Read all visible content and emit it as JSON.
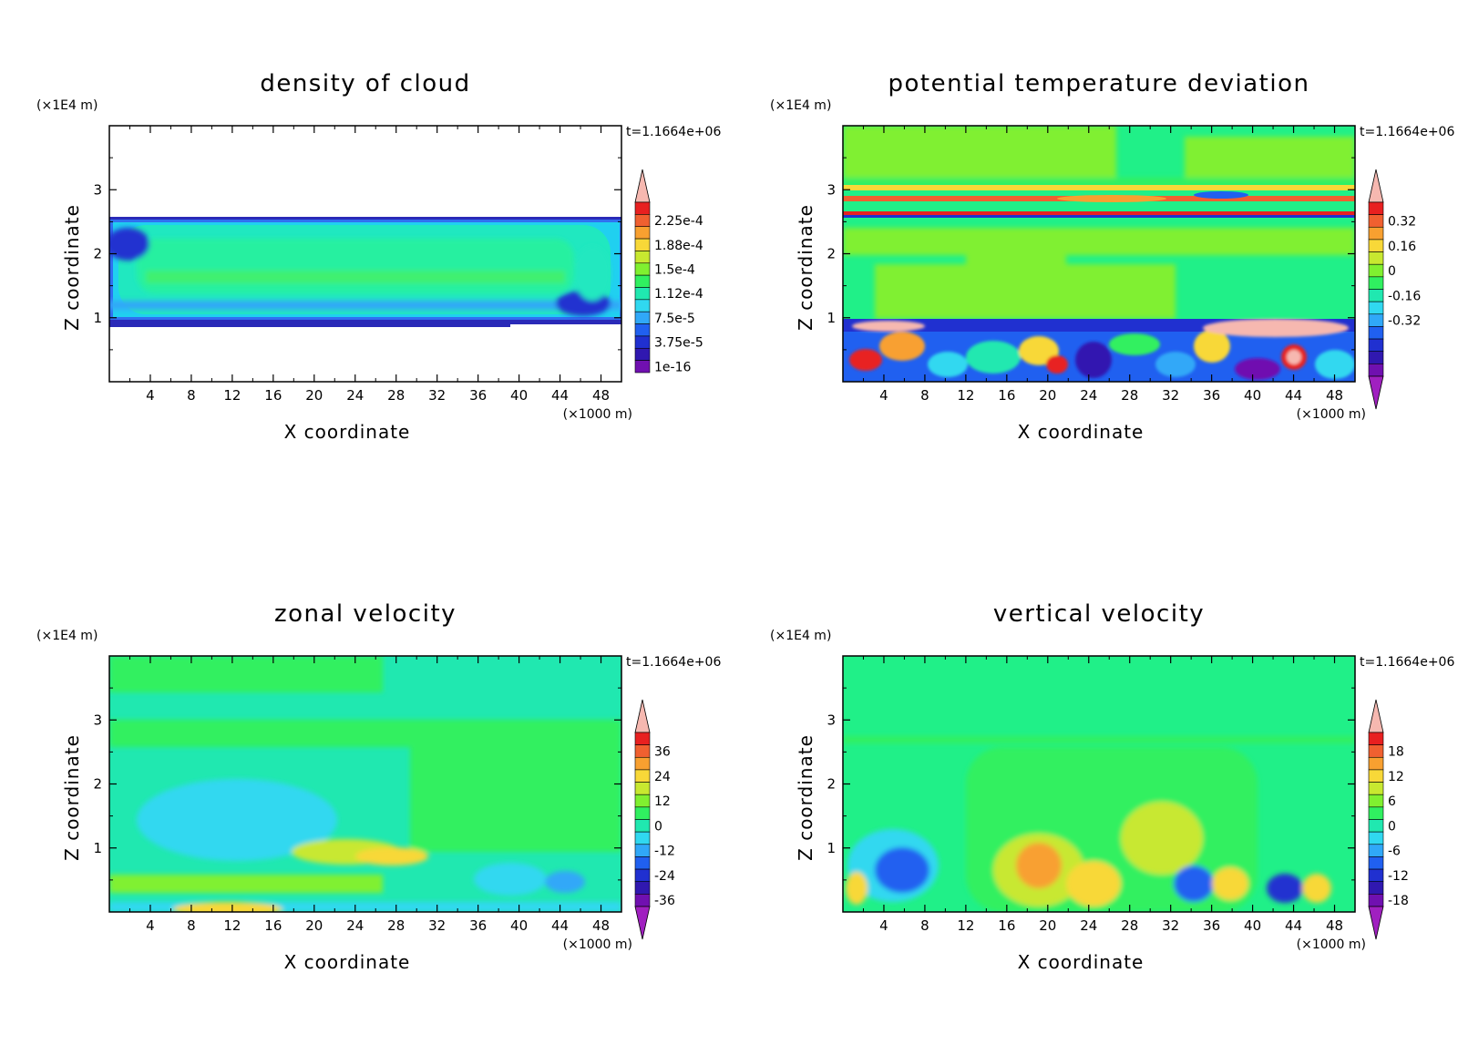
{
  "chart_data": [
    {
      "type": "heatmap",
      "title": "density of cloud",
      "xlabel": "X coordinate",
      "ylabel": "Z coordinate",
      "x_unit": "(×1000 m)",
      "y_unit": "(×1E4 m)",
      "time_label": "t=1.1664e+06",
      "xlim": [
        0,
        50
      ],
      "ylim": [
        0,
        4
      ],
      "x_ticks": [
        "4",
        "8",
        "12",
        "16",
        "20",
        "24",
        "28",
        "32",
        "36",
        "40",
        "44",
        "48"
      ],
      "y_ticks": [
        "1",
        "2",
        "3"
      ],
      "colorbar_labels": [
        "2.25e-4",
        "1.88e-4",
        "1.5e-4",
        "1.12e-4",
        "7.5e-5",
        "3.75e-5",
        "1e-16"
      ],
      "colorbar_colors": [
        "#f6b8b0",
        "#e82020",
        "#f06030",
        "#f8a030",
        "#f8d838",
        "#c8e830",
        "#80f030",
        "#30f060",
        "#20e8b0",
        "#30d8f0",
        "#30a8f8",
        "#2060f0",
        "#2030d0",
        "#3018b0",
        "#7010b0"
      ],
      "colorbar_has_top_arrow": true,
      "colorbar_has_bottom_arrow": false
    },
    {
      "type": "heatmap",
      "title": "potential temperature deviation",
      "xlabel": "X coordinate",
      "ylabel": "Z coordinate",
      "x_unit": "(×1000 m)",
      "y_unit": "(×1E4 m)",
      "time_label": "t=1.1664e+06",
      "xlim": [
        0,
        50
      ],
      "ylim": [
        0,
        4
      ],
      "x_ticks": [
        "4",
        "8",
        "12",
        "16",
        "20",
        "24",
        "28",
        "32",
        "36",
        "40",
        "44",
        "48"
      ],
      "y_ticks": [
        "1",
        "2",
        "3"
      ],
      "colorbar_labels": [
        "0.32",
        "0.16",
        "0",
        "-0.16",
        "-0.32"
      ],
      "colorbar_colors": [
        "#f6b8b0",
        "#e82020",
        "#f06030",
        "#f8a030",
        "#f8d838",
        "#c8e830",
        "#80f030",
        "#30f060",
        "#20e8b0",
        "#30d8f0",
        "#30a8f8",
        "#2060f0",
        "#2030d0",
        "#3018b0",
        "#7010b0",
        "#a020c0"
      ],
      "colorbar_has_top_arrow": true,
      "colorbar_has_bottom_arrow": true
    },
    {
      "type": "heatmap",
      "title": "zonal velocity",
      "xlabel": "X coordinate",
      "ylabel": "Z coordinate",
      "x_unit": "(×1000 m)",
      "y_unit": "(×1E4 m)",
      "time_label": "t=1.1664e+06",
      "xlim": [
        0,
        50
      ],
      "ylim": [
        0,
        4
      ],
      "x_ticks": [
        "4",
        "8",
        "12",
        "16",
        "20",
        "24",
        "28",
        "32",
        "36",
        "40",
        "44",
        "48"
      ],
      "y_ticks": [
        "1",
        "2",
        "3"
      ],
      "colorbar_labels": [
        "36",
        "24",
        "12",
        "0",
        "-12",
        "-24",
        "-36"
      ],
      "colorbar_colors": [
        "#f6b8b0",
        "#e82020",
        "#f06030",
        "#f8a030",
        "#f8d838",
        "#c8e830",
        "#80f030",
        "#30f060",
        "#20e8b0",
        "#30d8f0",
        "#30a8f8",
        "#2060f0",
        "#2030d0",
        "#3018b0",
        "#7010b0",
        "#a020c0"
      ],
      "colorbar_has_top_arrow": true,
      "colorbar_has_bottom_arrow": true
    },
    {
      "type": "heatmap",
      "title": "vertical velocity",
      "xlabel": "X coordinate",
      "ylabel": "Z coordinate",
      "x_unit": "(×1000 m)",
      "y_unit": "(×1E4 m)",
      "time_label": "t=1.1664e+06",
      "xlim": [
        0,
        50
      ],
      "ylim": [
        0,
        4
      ],
      "x_ticks": [
        "4",
        "8",
        "12",
        "16",
        "20",
        "24",
        "28",
        "32",
        "36",
        "40",
        "44",
        "48"
      ],
      "y_ticks": [
        "1",
        "2",
        "3"
      ],
      "colorbar_labels": [
        "18",
        "12",
        "6",
        "0",
        "-6",
        "-12",
        "-18"
      ],
      "colorbar_colors": [
        "#f6b8b0",
        "#e82020",
        "#f06030",
        "#f8a030",
        "#f8d838",
        "#c8e830",
        "#80f030",
        "#30f060",
        "#20e8b0",
        "#30d8f0",
        "#30a8f8",
        "#2060f0",
        "#2030d0",
        "#3018b0",
        "#7010b0",
        "#a020c0"
      ],
      "colorbar_has_top_arrow": true,
      "colorbar_has_bottom_arrow": true
    }
  ]
}
